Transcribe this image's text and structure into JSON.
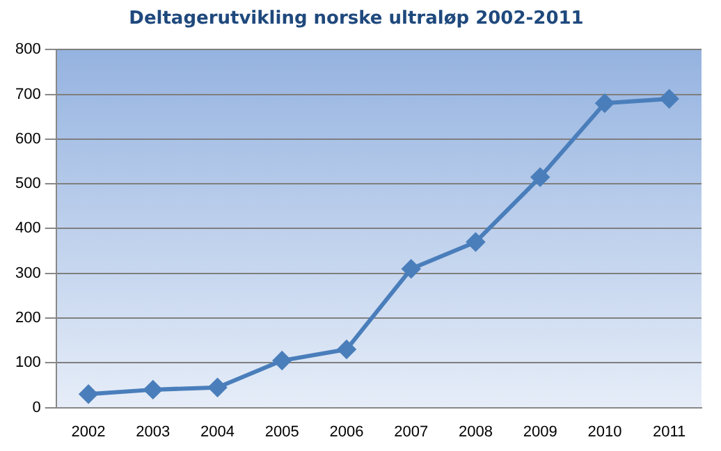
{
  "chart_data": {
    "type": "line",
    "title": "Deltagerutvikling norske ultraløp 2002-2011",
    "categories": [
      "2002",
      "2003",
      "2004",
      "2005",
      "2006",
      "2007",
      "2008",
      "2009",
      "2010",
      "2011"
    ],
    "series": [
      {
        "color": "#4a7ebb",
        "values": [
          30,
          40,
          45,
          105,
          130,
          310,
          370,
          515,
          680,
          690
        ]
      }
    ],
    "ylim": [
      0,
      800
    ],
    "yticks": [
      0,
      100,
      200,
      300,
      400,
      500,
      600,
      700,
      800
    ],
    "grid": "y",
    "legend": false,
    "marker": "diamond",
    "line_style": "solid"
  }
}
